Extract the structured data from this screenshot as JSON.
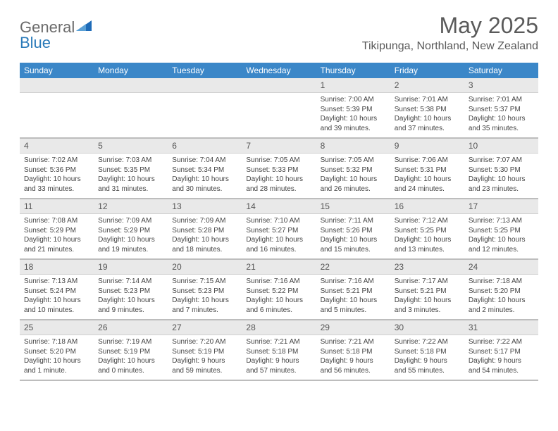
{
  "brand": {
    "word1": "General",
    "word2": "Blue"
  },
  "title": "May 2025",
  "location": "Tikipunga, Northland, New Zealand",
  "colors": {
    "header_bg": "#3b87c8",
    "header_text": "#ffffff",
    "daynum_bg": "#e9e9e9",
    "divider": "#bdbdbd",
    "body_text": "#444444",
    "title_text": "#5a5a5a"
  },
  "weekdays": [
    "Sunday",
    "Monday",
    "Tuesday",
    "Wednesday",
    "Thursday",
    "Friday",
    "Saturday"
  ],
  "weeks": [
    [
      {
        "n": "",
        "sr": "",
        "ss": "",
        "dl1": "",
        "dl2": ""
      },
      {
        "n": "",
        "sr": "",
        "ss": "",
        "dl1": "",
        "dl2": ""
      },
      {
        "n": "",
        "sr": "",
        "ss": "",
        "dl1": "",
        "dl2": ""
      },
      {
        "n": "",
        "sr": "",
        "ss": "",
        "dl1": "",
        "dl2": ""
      },
      {
        "n": "1",
        "sr": "Sunrise: 7:00 AM",
        "ss": "Sunset: 5:39 PM",
        "dl1": "Daylight: 10 hours",
        "dl2": "and 39 minutes."
      },
      {
        "n": "2",
        "sr": "Sunrise: 7:01 AM",
        "ss": "Sunset: 5:38 PM",
        "dl1": "Daylight: 10 hours",
        "dl2": "and 37 minutes."
      },
      {
        "n": "3",
        "sr": "Sunrise: 7:01 AM",
        "ss": "Sunset: 5:37 PM",
        "dl1": "Daylight: 10 hours",
        "dl2": "and 35 minutes."
      }
    ],
    [
      {
        "n": "4",
        "sr": "Sunrise: 7:02 AM",
        "ss": "Sunset: 5:36 PM",
        "dl1": "Daylight: 10 hours",
        "dl2": "and 33 minutes."
      },
      {
        "n": "5",
        "sr": "Sunrise: 7:03 AM",
        "ss": "Sunset: 5:35 PM",
        "dl1": "Daylight: 10 hours",
        "dl2": "and 31 minutes."
      },
      {
        "n": "6",
        "sr": "Sunrise: 7:04 AM",
        "ss": "Sunset: 5:34 PM",
        "dl1": "Daylight: 10 hours",
        "dl2": "and 30 minutes."
      },
      {
        "n": "7",
        "sr": "Sunrise: 7:05 AM",
        "ss": "Sunset: 5:33 PM",
        "dl1": "Daylight: 10 hours",
        "dl2": "and 28 minutes."
      },
      {
        "n": "8",
        "sr": "Sunrise: 7:05 AM",
        "ss": "Sunset: 5:32 PM",
        "dl1": "Daylight: 10 hours",
        "dl2": "and 26 minutes."
      },
      {
        "n": "9",
        "sr": "Sunrise: 7:06 AM",
        "ss": "Sunset: 5:31 PM",
        "dl1": "Daylight: 10 hours",
        "dl2": "and 24 minutes."
      },
      {
        "n": "10",
        "sr": "Sunrise: 7:07 AM",
        "ss": "Sunset: 5:30 PM",
        "dl1": "Daylight: 10 hours",
        "dl2": "and 23 minutes."
      }
    ],
    [
      {
        "n": "11",
        "sr": "Sunrise: 7:08 AM",
        "ss": "Sunset: 5:29 PM",
        "dl1": "Daylight: 10 hours",
        "dl2": "and 21 minutes."
      },
      {
        "n": "12",
        "sr": "Sunrise: 7:09 AM",
        "ss": "Sunset: 5:29 PM",
        "dl1": "Daylight: 10 hours",
        "dl2": "and 19 minutes."
      },
      {
        "n": "13",
        "sr": "Sunrise: 7:09 AM",
        "ss": "Sunset: 5:28 PM",
        "dl1": "Daylight: 10 hours",
        "dl2": "and 18 minutes."
      },
      {
        "n": "14",
        "sr": "Sunrise: 7:10 AM",
        "ss": "Sunset: 5:27 PM",
        "dl1": "Daylight: 10 hours",
        "dl2": "and 16 minutes."
      },
      {
        "n": "15",
        "sr": "Sunrise: 7:11 AM",
        "ss": "Sunset: 5:26 PM",
        "dl1": "Daylight: 10 hours",
        "dl2": "and 15 minutes."
      },
      {
        "n": "16",
        "sr": "Sunrise: 7:12 AM",
        "ss": "Sunset: 5:25 PM",
        "dl1": "Daylight: 10 hours",
        "dl2": "and 13 minutes."
      },
      {
        "n": "17",
        "sr": "Sunrise: 7:13 AM",
        "ss": "Sunset: 5:25 PM",
        "dl1": "Daylight: 10 hours",
        "dl2": "and 12 minutes."
      }
    ],
    [
      {
        "n": "18",
        "sr": "Sunrise: 7:13 AM",
        "ss": "Sunset: 5:24 PM",
        "dl1": "Daylight: 10 hours",
        "dl2": "and 10 minutes."
      },
      {
        "n": "19",
        "sr": "Sunrise: 7:14 AM",
        "ss": "Sunset: 5:23 PM",
        "dl1": "Daylight: 10 hours",
        "dl2": "and 9 minutes."
      },
      {
        "n": "20",
        "sr": "Sunrise: 7:15 AM",
        "ss": "Sunset: 5:23 PM",
        "dl1": "Daylight: 10 hours",
        "dl2": "and 7 minutes."
      },
      {
        "n": "21",
        "sr": "Sunrise: 7:16 AM",
        "ss": "Sunset: 5:22 PM",
        "dl1": "Daylight: 10 hours",
        "dl2": "and 6 minutes."
      },
      {
        "n": "22",
        "sr": "Sunrise: 7:16 AM",
        "ss": "Sunset: 5:21 PM",
        "dl1": "Daylight: 10 hours",
        "dl2": "and 5 minutes."
      },
      {
        "n": "23",
        "sr": "Sunrise: 7:17 AM",
        "ss": "Sunset: 5:21 PM",
        "dl1": "Daylight: 10 hours",
        "dl2": "and 3 minutes."
      },
      {
        "n": "24",
        "sr": "Sunrise: 7:18 AM",
        "ss": "Sunset: 5:20 PM",
        "dl1": "Daylight: 10 hours",
        "dl2": "and 2 minutes."
      }
    ],
    [
      {
        "n": "25",
        "sr": "Sunrise: 7:18 AM",
        "ss": "Sunset: 5:20 PM",
        "dl1": "Daylight: 10 hours",
        "dl2": "and 1 minute."
      },
      {
        "n": "26",
        "sr": "Sunrise: 7:19 AM",
        "ss": "Sunset: 5:19 PM",
        "dl1": "Daylight: 10 hours",
        "dl2": "and 0 minutes."
      },
      {
        "n": "27",
        "sr": "Sunrise: 7:20 AM",
        "ss": "Sunset: 5:19 PM",
        "dl1": "Daylight: 9 hours",
        "dl2": "and 59 minutes."
      },
      {
        "n": "28",
        "sr": "Sunrise: 7:21 AM",
        "ss": "Sunset: 5:18 PM",
        "dl1": "Daylight: 9 hours",
        "dl2": "and 57 minutes."
      },
      {
        "n": "29",
        "sr": "Sunrise: 7:21 AM",
        "ss": "Sunset: 5:18 PM",
        "dl1": "Daylight: 9 hours",
        "dl2": "and 56 minutes."
      },
      {
        "n": "30",
        "sr": "Sunrise: 7:22 AM",
        "ss": "Sunset: 5:18 PM",
        "dl1": "Daylight: 9 hours",
        "dl2": "and 55 minutes."
      },
      {
        "n": "31",
        "sr": "Sunrise: 7:22 AM",
        "ss": "Sunset: 5:17 PM",
        "dl1": "Daylight: 9 hours",
        "dl2": "and 54 minutes."
      }
    ]
  ]
}
